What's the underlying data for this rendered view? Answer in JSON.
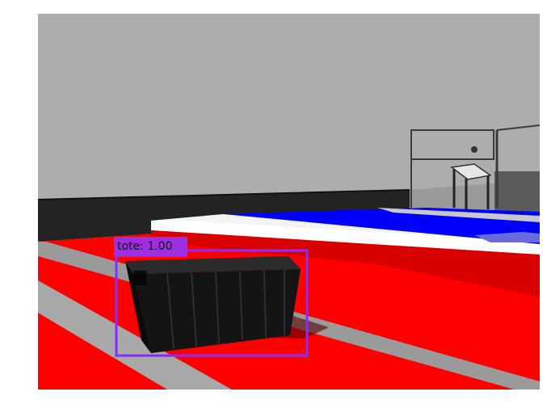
{
  "scene": {
    "description_colors": {
      "sky_wall": "#adadad",
      "back_wall": "#232323",
      "floor": "#ff0000",
      "platform_top": "#0000ff",
      "platform_edge": "#ffffff",
      "tote": "#141414"
    }
  },
  "detections": [
    {
      "label_text": "tote: 1.00",
      "box_color": "#8b2cff",
      "label_bg": "#9d2fe0"
    }
  ]
}
